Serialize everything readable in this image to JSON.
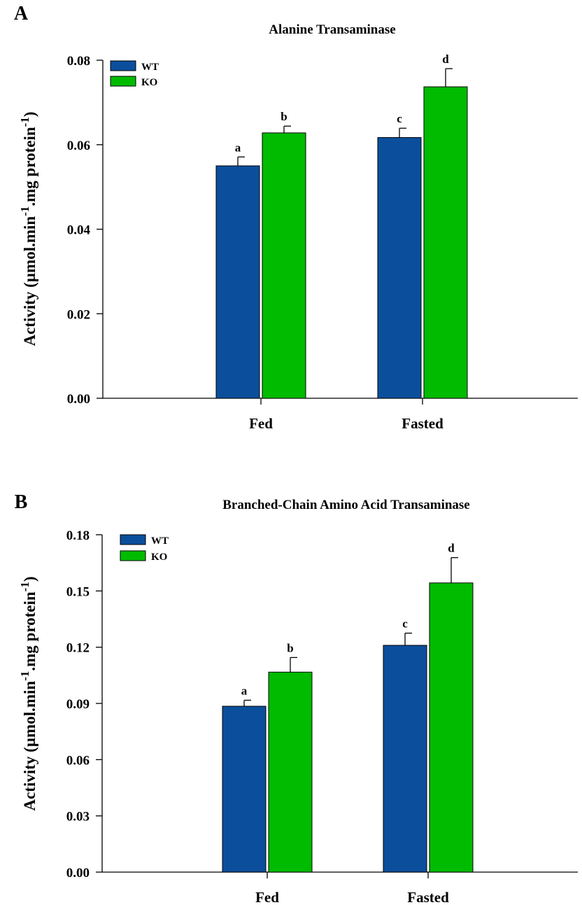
{
  "colors": {
    "wt": "#0b4f9c",
    "ko": "#00bb00",
    "axis": "#000000"
  },
  "chart_data": [
    {
      "type": "bar",
      "panel_letter": "A",
      "title": "Alanine Transaminase",
      "ylabel": "Activity (µmol.min-1.mg protein-1)",
      "ylabel_parts": {
        "a": "Activity (µmol.min",
        "sup1": "-1",
        "b": ".mg protein",
        "sup2": "-1",
        "c": ")"
      },
      "xlabel": "",
      "categories": [
        "Fed",
        "Fasted"
      ],
      "ylim": [
        0,
        0.08
      ],
      "yticks": [
        "0.00",
        "0.02",
        "0.04",
        "0.06",
        "0.08"
      ],
      "legend": {
        "position": "top-left",
        "entries": [
          "WT",
          "KO"
        ]
      },
      "grid": false,
      "series": [
        {
          "name": "WT",
          "color": "#0b4f9c",
          "values": [
            0.055,
            0.0617
          ],
          "errors": [
            0.0021,
            0.0022
          ],
          "labels": [
            "a",
            "c"
          ]
        },
        {
          "name": "KO",
          "color": "#00bb00",
          "values": [
            0.0628,
            0.0737
          ],
          "errors": [
            0.0016,
            0.0043
          ],
          "labels": [
            "b",
            "d"
          ]
        }
      ]
    },
    {
      "type": "bar",
      "panel_letter": "B",
      "title": "Branched-Chain Amino Acid Transaminase",
      "ylabel": "Activity (µmol.min-1.mg protein-1)",
      "ylabel_parts": {
        "a": "Activity (µmol.min",
        "sup1": "-1",
        "b": ".mg protein",
        "sup2": "-1",
        "c": ")"
      },
      "xlabel": "",
      "categories": [
        "Fed",
        "Fasted"
      ],
      "ylim": [
        0,
        0.18
      ],
      "yticks": [
        "0.00",
        "0.03",
        "0.06",
        "0.09",
        "0.12",
        "0.15",
        "0.18"
      ],
      "legend": {
        "position": "top-left",
        "entries": [
          "WT",
          "KO"
        ]
      },
      "grid": false,
      "series": [
        {
          "name": "WT",
          "color": "#0b4f9c",
          "values": [
            0.0885,
            0.121
          ],
          "errors": [
            0.0032,
            0.0065
          ],
          "labels": [
            "a",
            "c"
          ]
        },
        {
          "name": "KO",
          "color": "#00bb00",
          "values": [
            0.1067,
            0.1543
          ],
          "errors": [
            0.0078,
            0.0135
          ],
          "labels": [
            "b",
            "d"
          ]
        }
      ]
    }
  ]
}
